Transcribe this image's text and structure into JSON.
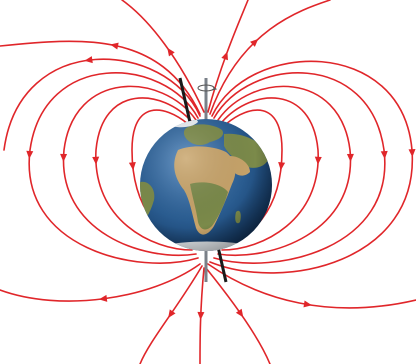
{
  "figure": {
    "subject": "earth-magnetic-field",
    "colors": {
      "field_line": "#e0262a",
      "rotation_axis": "#7a8088",
      "magnetic_axis": "#1a1a1a",
      "ocean": "#2a5d92",
      "ocean_deep": "#163f6d",
      "land": "#7b8a4a",
      "desert": "#c8a46a",
      "ice": "#e9eef2",
      "background": "#ffffff"
    },
    "icons": {
      "rotation": "rotation-arrow-icon"
    }
  }
}
